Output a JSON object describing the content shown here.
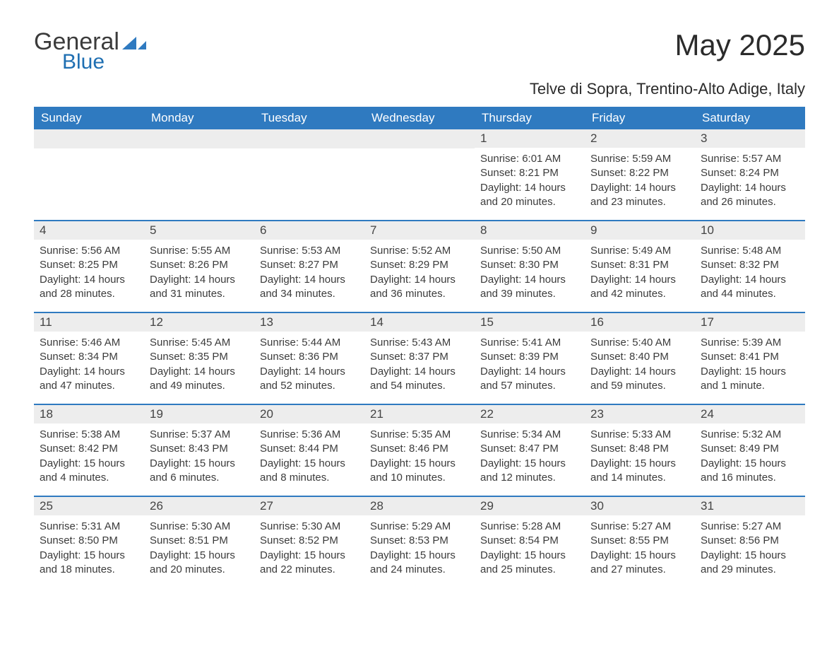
{
  "logo": {
    "text1": "General",
    "text2": "Blue",
    "shape_color": "#2f7ac0"
  },
  "title": "May 2025",
  "location": "Telve di Sopra, Trentino-Alto Adige, Italy",
  "colors": {
    "header_bg": "#2f7ac0",
    "header_text": "#ffffff",
    "daynum_bg": "#ededed",
    "text": "#3b3b3b",
    "rule": "#2f7ac0"
  },
  "day_names": [
    "Sunday",
    "Monday",
    "Tuesday",
    "Wednesday",
    "Thursday",
    "Friday",
    "Saturday"
  ],
  "weeks": [
    [
      {
        "day": "",
        "sunrise": "",
        "sunset": "",
        "daylight": ""
      },
      {
        "day": "",
        "sunrise": "",
        "sunset": "",
        "daylight": ""
      },
      {
        "day": "",
        "sunrise": "",
        "sunset": "",
        "daylight": ""
      },
      {
        "day": "",
        "sunrise": "",
        "sunset": "",
        "daylight": ""
      },
      {
        "day": "1",
        "sunrise": "Sunrise: 6:01 AM",
        "sunset": "Sunset: 8:21 PM",
        "daylight": "Daylight: 14 hours and 20 minutes."
      },
      {
        "day": "2",
        "sunrise": "Sunrise: 5:59 AM",
        "sunset": "Sunset: 8:22 PM",
        "daylight": "Daylight: 14 hours and 23 minutes."
      },
      {
        "day": "3",
        "sunrise": "Sunrise: 5:57 AM",
        "sunset": "Sunset: 8:24 PM",
        "daylight": "Daylight: 14 hours and 26 minutes."
      }
    ],
    [
      {
        "day": "4",
        "sunrise": "Sunrise: 5:56 AM",
        "sunset": "Sunset: 8:25 PM",
        "daylight": "Daylight: 14 hours and 28 minutes."
      },
      {
        "day": "5",
        "sunrise": "Sunrise: 5:55 AM",
        "sunset": "Sunset: 8:26 PM",
        "daylight": "Daylight: 14 hours and 31 minutes."
      },
      {
        "day": "6",
        "sunrise": "Sunrise: 5:53 AM",
        "sunset": "Sunset: 8:27 PM",
        "daylight": "Daylight: 14 hours and 34 minutes."
      },
      {
        "day": "7",
        "sunrise": "Sunrise: 5:52 AM",
        "sunset": "Sunset: 8:29 PM",
        "daylight": "Daylight: 14 hours and 36 minutes."
      },
      {
        "day": "8",
        "sunrise": "Sunrise: 5:50 AM",
        "sunset": "Sunset: 8:30 PM",
        "daylight": "Daylight: 14 hours and 39 minutes."
      },
      {
        "day": "9",
        "sunrise": "Sunrise: 5:49 AM",
        "sunset": "Sunset: 8:31 PM",
        "daylight": "Daylight: 14 hours and 42 minutes."
      },
      {
        "day": "10",
        "sunrise": "Sunrise: 5:48 AM",
        "sunset": "Sunset: 8:32 PM",
        "daylight": "Daylight: 14 hours and 44 minutes."
      }
    ],
    [
      {
        "day": "11",
        "sunrise": "Sunrise: 5:46 AM",
        "sunset": "Sunset: 8:34 PM",
        "daylight": "Daylight: 14 hours and 47 minutes."
      },
      {
        "day": "12",
        "sunrise": "Sunrise: 5:45 AM",
        "sunset": "Sunset: 8:35 PM",
        "daylight": "Daylight: 14 hours and 49 minutes."
      },
      {
        "day": "13",
        "sunrise": "Sunrise: 5:44 AM",
        "sunset": "Sunset: 8:36 PM",
        "daylight": "Daylight: 14 hours and 52 minutes."
      },
      {
        "day": "14",
        "sunrise": "Sunrise: 5:43 AM",
        "sunset": "Sunset: 8:37 PM",
        "daylight": "Daylight: 14 hours and 54 minutes."
      },
      {
        "day": "15",
        "sunrise": "Sunrise: 5:41 AM",
        "sunset": "Sunset: 8:39 PM",
        "daylight": "Daylight: 14 hours and 57 minutes."
      },
      {
        "day": "16",
        "sunrise": "Sunrise: 5:40 AM",
        "sunset": "Sunset: 8:40 PM",
        "daylight": "Daylight: 14 hours and 59 minutes."
      },
      {
        "day": "17",
        "sunrise": "Sunrise: 5:39 AM",
        "sunset": "Sunset: 8:41 PM",
        "daylight": "Daylight: 15 hours and 1 minute."
      }
    ],
    [
      {
        "day": "18",
        "sunrise": "Sunrise: 5:38 AM",
        "sunset": "Sunset: 8:42 PM",
        "daylight": "Daylight: 15 hours and 4 minutes."
      },
      {
        "day": "19",
        "sunrise": "Sunrise: 5:37 AM",
        "sunset": "Sunset: 8:43 PM",
        "daylight": "Daylight: 15 hours and 6 minutes."
      },
      {
        "day": "20",
        "sunrise": "Sunrise: 5:36 AM",
        "sunset": "Sunset: 8:44 PM",
        "daylight": "Daylight: 15 hours and 8 minutes."
      },
      {
        "day": "21",
        "sunrise": "Sunrise: 5:35 AM",
        "sunset": "Sunset: 8:46 PM",
        "daylight": "Daylight: 15 hours and 10 minutes."
      },
      {
        "day": "22",
        "sunrise": "Sunrise: 5:34 AM",
        "sunset": "Sunset: 8:47 PM",
        "daylight": "Daylight: 15 hours and 12 minutes."
      },
      {
        "day": "23",
        "sunrise": "Sunrise: 5:33 AM",
        "sunset": "Sunset: 8:48 PM",
        "daylight": "Daylight: 15 hours and 14 minutes."
      },
      {
        "day": "24",
        "sunrise": "Sunrise: 5:32 AM",
        "sunset": "Sunset: 8:49 PM",
        "daylight": "Daylight: 15 hours and 16 minutes."
      }
    ],
    [
      {
        "day": "25",
        "sunrise": "Sunrise: 5:31 AM",
        "sunset": "Sunset: 8:50 PM",
        "daylight": "Daylight: 15 hours and 18 minutes."
      },
      {
        "day": "26",
        "sunrise": "Sunrise: 5:30 AM",
        "sunset": "Sunset: 8:51 PM",
        "daylight": "Daylight: 15 hours and 20 minutes."
      },
      {
        "day": "27",
        "sunrise": "Sunrise: 5:30 AM",
        "sunset": "Sunset: 8:52 PM",
        "daylight": "Daylight: 15 hours and 22 minutes."
      },
      {
        "day": "28",
        "sunrise": "Sunrise: 5:29 AM",
        "sunset": "Sunset: 8:53 PM",
        "daylight": "Daylight: 15 hours and 24 minutes."
      },
      {
        "day": "29",
        "sunrise": "Sunrise: 5:28 AM",
        "sunset": "Sunset: 8:54 PM",
        "daylight": "Daylight: 15 hours and 25 minutes."
      },
      {
        "day": "30",
        "sunrise": "Sunrise: 5:27 AM",
        "sunset": "Sunset: 8:55 PM",
        "daylight": "Daylight: 15 hours and 27 minutes."
      },
      {
        "day": "31",
        "sunrise": "Sunrise: 5:27 AM",
        "sunset": "Sunset: 8:56 PM",
        "daylight": "Daylight: 15 hours and 29 minutes."
      }
    ]
  ]
}
